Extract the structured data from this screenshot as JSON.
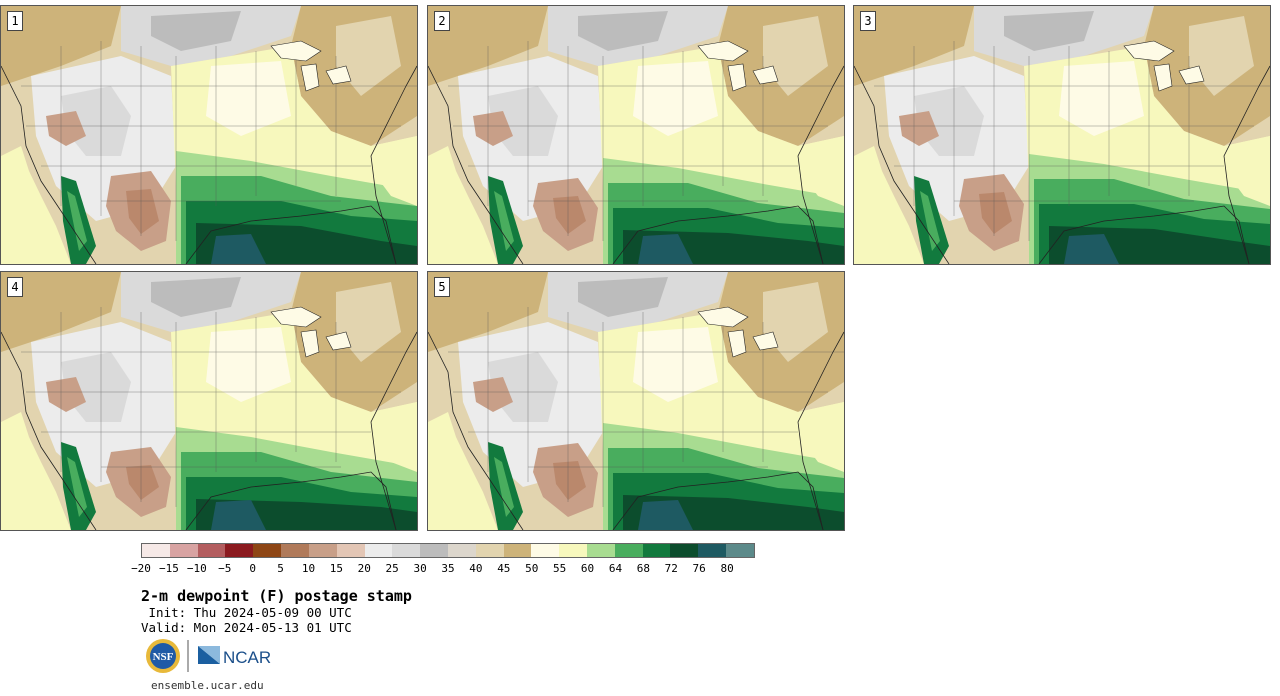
{
  "panels": [
    {
      "label": "1"
    },
    {
      "label": "2"
    },
    {
      "label": "3"
    },
    {
      "label": "4"
    },
    {
      "label": "5"
    }
  ],
  "colorbar": {
    "colors": [
      "#f6e9e7",
      "#d8a3a2",
      "#b35d5f",
      "#8b1a1f",
      "#8e4615",
      "#b07a5a",
      "#c89f88",
      "#e3c6b5",
      "#ececec",
      "#dadada",
      "#bcbcbc",
      "#dcd6cc",
      "#e2d4af",
      "#cdb37a",
      "#fefbe6",
      "#f7f8bd",
      "#a8dc91",
      "#49ad5e",
      "#127a3e",
      "#0c4d2d",
      "#1e5a62",
      "#5c8a8a"
    ],
    "tick_labels": [
      "−20",
      "−15",
      "−10",
      "−5",
      "0",
      "5",
      "10",
      "15",
      "20",
      "25",
      "30",
      "35",
      "40",
      "45",
      "50",
      "55",
      "60",
      "64",
      "68",
      "72",
      "76",
      "80"
    ]
  },
  "title": "2-m dewpoint (F) postage stamp",
  "init": " Init: Thu 2024-05-09 00 UTC",
  "valid": "Valid: Mon 2024-05-13 01 UTC",
  "logos": {
    "nsf": "NSF",
    "ncar": "NCAR"
  },
  "site": "ensemble.ucar.edu"
}
